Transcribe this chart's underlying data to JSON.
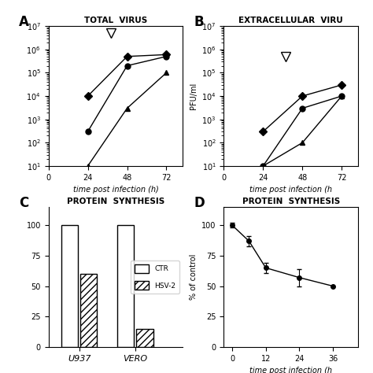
{
  "fig_width": 4.74,
  "fig_height": 4.74,
  "bg_color": "#ffffff",
  "panel_A": {
    "title": "TOTAL  VIRUS",
    "label": "A",
    "xlabel": "time post infection (h)",
    "x": [
      24,
      48,
      72
    ],
    "series": [
      {
        "y": [
          10000.0,
          500000.0,
          600000.0
        ]
      },
      {
        "y": [
          300.0,
          200000.0,
          500000.0
        ]
      },
      {
        "y": [
          10.0,
          3000.0,
          100000.0
        ]
      }
    ],
    "markers": [
      "D",
      "o",
      "^"
    ],
    "markersizes": [
      5,
      5,
      5
    ],
    "ylim": [
      10.0,
      10000000.0
    ],
    "xlim": [
      0,
      82
    ],
    "xticks": [
      0,
      24,
      48,
      72
    ],
    "triangle_x": 38,
    "triangle_y": 5000000
  },
  "panel_B": {
    "title": "EXTRACELLULAR  VIRU",
    "label": "B",
    "xlabel": "time post infection (h",
    "ylabel": "PFU/ml",
    "x": [
      24,
      48,
      72
    ],
    "series": [
      {
        "y": [
          300.0,
          10000.0,
          30000.0
        ]
      },
      {
        "y": [
          10.0,
          3000.0,
          10000.0
        ]
      },
      {
        "y": [
          10.0,
          100.0,
          10000.0
        ]
      }
    ],
    "markers": [
      "D",
      "o",
      "^"
    ],
    "markersizes": [
      5,
      5,
      5
    ],
    "ylim": [
      10.0,
      10000000.0
    ],
    "xlim": [
      0,
      82
    ],
    "xticks": [
      0,
      24,
      48,
      72
    ],
    "triangle_x": 38,
    "triangle_y": 500000.0
  },
  "panel_C": {
    "title": "PROTEIN  SYNTHESIS",
    "label": "C",
    "groups": [
      "U937",
      "VERO"
    ],
    "ctr_values": [
      100,
      100
    ],
    "hsv_values": [
      60,
      15
    ],
    "ylim": [
      0,
      115
    ],
    "yticks": [
      0,
      25,
      50,
      75,
      100
    ],
    "legend_labels": [
      "CTR",
      "HSV-2"
    ],
    "bar_width": 0.3
  },
  "panel_D": {
    "title": "PROTEIN  SYNTHESIS",
    "label": "D",
    "xlabel": "time post infection (h",
    "ylabel": "% of control",
    "x": [
      0,
      6,
      12,
      24,
      36
    ],
    "y": [
      100,
      87,
      65,
      57,
      50
    ],
    "yerr": [
      2,
      4,
      4,
      7,
      0
    ],
    "has_err": [
      true,
      true,
      true,
      true,
      false
    ],
    "ylim": [
      0,
      115
    ],
    "yticks": [
      0,
      25,
      50,
      75,
      100
    ],
    "xlim": [
      -3,
      45
    ],
    "xticks": [
      0,
      12,
      24,
      36
    ]
  }
}
